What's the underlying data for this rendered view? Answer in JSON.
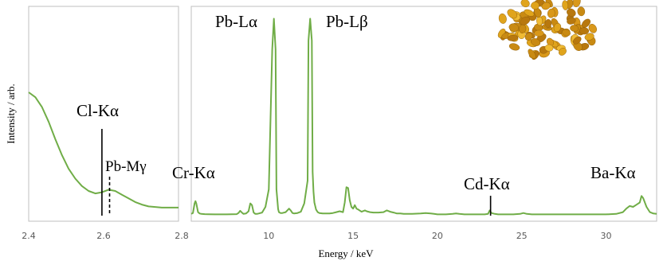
{
  "chart_data": [
    {
      "type": "line",
      "panel": "left",
      "xlabel": "",
      "ylabel": "Intensity / arb.",
      "xlim": [
        2.4,
        2.85
      ],
      "x_ticks": [
        "2.4",
        "2.6",
        "2.8"
      ],
      "series": [
        {
          "x": [
            2.4,
            2.42,
            2.44,
            2.46,
            2.48,
            2.5,
            2.52,
            2.54,
            2.56,
            2.58,
            2.6,
            2.62,
            2.64,
            2.66,
            2.68,
            2.7,
            2.72,
            2.74,
            2.76,
            2.78,
            2.8,
            2.82,
            2.84,
            2.85
          ],
          "y": [
            100,
            96,
            88,
            76,
            62,
            49,
            38,
            30,
            24,
            20,
            18,
            19,
            21,
            20,
            17,
            14,
            11,
            9,
            7.5,
            7,
            6.5,
            6.5,
            6.5,
            6.5
          ]
        }
      ],
      "annotations": [
        {
          "label": "Cl-Kα",
          "x": 2.62,
          "line": "solid"
        },
        {
          "label": "Pb-Mγ",
          "x": 2.643,
          "line": "dashed"
        }
      ]
    },
    {
      "type": "line",
      "panel": "right",
      "xlabel": "Energy / keV",
      "ylabel": "",
      "xlim": [
        5.4,
        33.0
      ],
      "x_ticks": [
        10,
        15,
        20,
        25,
        30
      ],
      "series": [
        {
          "x": [
            5.4,
            5.5,
            5.6,
            5.65,
            5.7,
            5.8,
            5.9,
            6.0,
            6.2,
            6.4,
            6.8,
            7.5,
            8.1,
            8.2,
            8.3,
            8.4,
            8.5,
            8.65,
            8.8,
            8.9,
            9.0,
            9.1,
            9.2,
            9.3,
            9.4,
            9.6,
            9.8,
            10.0,
            10.2,
            10.3,
            10.4,
            10.45,
            10.55,
            10.6,
            10.7,
            10.8,
            11.0,
            11.2,
            11.3,
            11.4,
            11.5,
            11.7,
            11.9,
            12.1,
            12.3,
            12.35,
            12.45,
            12.55,
            12.6,
            12.65,
            12.7,
            12.8,
            12.9,
            13.0,
            13.2,
            13.4,
            13.6,
            13.8,
            14.0,
            14.2,
            14.4,
            14.5,
            14.6,
            14.7,
            14.8,
            14.9,
            15.0,
            15.1,
            15.2,
            15.3,
            15.5,
            15.7,
            15.8,
            16.0,
            16.2,
            16.5,
            16.8,
            17.0,
            17.2,
            17.4,
            17.6,
            17.8,
            18.0,
            18.5,
            19.0,
            19.3,
            19.6,
            19.8,
            20.0,
            20.5,
            20.9,
            21.1,
            21.3,
            21.6,
            22.0,
            22.5,
            22.8,
            23.0,
            23.1,
            23.2,
            23.4,
            23.6,
            24.0,
            24.5,
            24.9,
            25.1,
            25.3,
            25.6,
            26.0,
            27.0,
            28.0,
            29.0,
            30.0,
            30.6,
            31.0,
            31.2,
            31.4,
            31.6,
            31.8,
            32.0,
            32.1,
            32.2,
            32.4,
            32.6,
            32.8,
            33.0
          ],
          "y": [
            4,
            6,
            28,
            33,
            28,
            8,
            5,
            4,
            3.5,
            3.2,
            3,
            3,
            3.5,
            6,
            11,
            7,
            4,
            5,
            10,
            28,
            24,
            7,
            4,
            4,
            5,
            7,
            20,
            60,
            380,
            450,
            380,
            60,
            15,
            8,
            6,
            6,
            8,
            16,
            12,
            6,
            5,
            6,
            9,
            28,
            80,
            400,
            450,
            400,
            100,
            55,
            30,
            14,
            8,
            6,
            5,
            5,
            5,
            6,
            8,
            10,
            8,
            30,
            65,
            63,
            35,
            20,
            16,
            24,
            16,
            14,
            9,
            12,
            10,
            8,
            7,
            7,
            8,
            12,
            9,
            7,
            5,
            5,
            4,
            4,
            5,
            6,
            5,
            4,
            3,
            3,
            4,
            5,
            4,
            3,
            3,
            3,
            3,
            4,
            12,
            6,
            4,
            3,
            3,
            3,
            4,
            6,
            4,
            3,
            3,
            3,
            3,
            3,
            3,
            4,
            8,
            16,
            22,
            20,
            25,
            30,
            45,
            40,
            20,
            8,
            5,
            4
          ]
        }
      ],
      "annotations": [
        {
          "label": "Pb-Lα"
        },
        {
          "label": "Pb-Lβ"
        },
        {
          "label": "Cr-Kα"
        },
        {
          "label": "Cd-Kα",
          "x": 23.15,
          "line": "solid"
        },
        {
          "label": "Ba-Kα"
        }
      ]
    }
  ]
}
